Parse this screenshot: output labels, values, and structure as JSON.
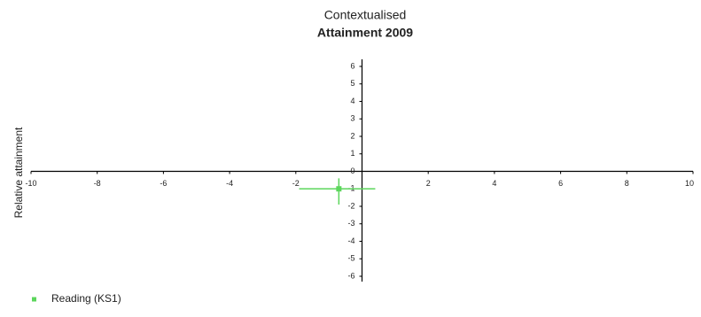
{
  "chart_data": {
    "type": "scatter",
    "title": "Contextualised",
    "subtitle": "Attainment 2009",
    "y_label": "Relative attainment",
    "xlim": [
      -10,
      10
    ],
    "ylim": [
      -6,
      6
    ],
    "xticks": [
      -10,
      -8,
      -6,
      -4,
      -2,
      2,
      4,
      6,
      8,
      10
    ],
    "yticks": [
      6,
      5,
      4,
      3,
      2,
      1,
      0,
      -1,
      -2,
      -3,
      -4,
      -5,
      -6
    ],
    "series": [
      {
        "name": "Reading (KS1)",
        "color": "#5cd65c",
        "x": [
          -0.7
        ],
        "values": [
          -1.0
        ],
        "x_range": [
          [
            -1.9,
            0.4
          ]
        ],
        "y_range": [
          [
            -1.9,
            -0.4
          ]
        ]
      }
    ]
  }
}
